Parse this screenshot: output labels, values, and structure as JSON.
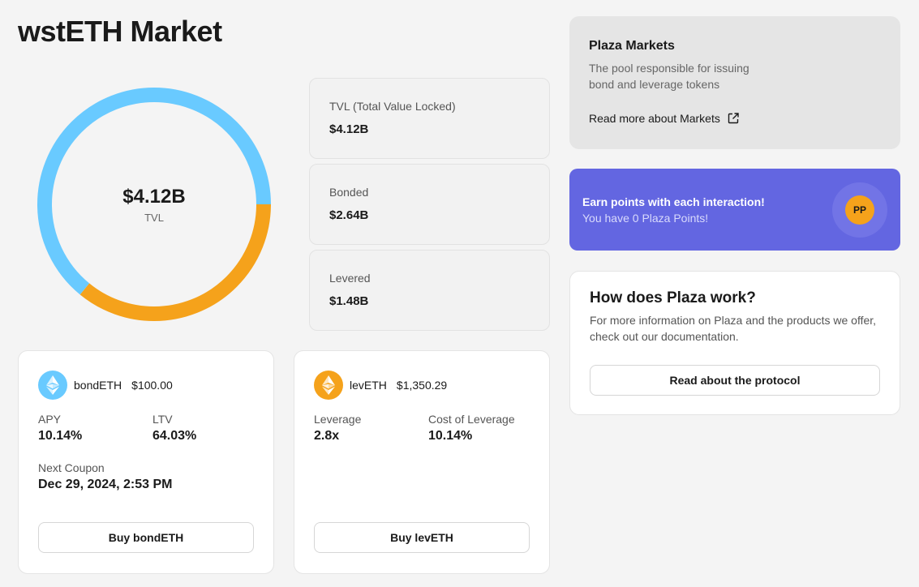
{
  "page": {
    "title": "wstETH Market"
  },
  "tvl_chart": {
    "value": "$4.12B",
    "label": "TVL",
    "segments": [
      {
        "name": "Bonded",
        "value": 2.64,
        "color": "#69caff"
      },
      {
        "name": "Levered",
        "value": 1.48,
        "color": "#f5a21b"
      }
    ]
  },
  "stats": {
    "tvl": {
      "label": "TVL (Total Value Locked)",
      "value": "$4.12B"
    },
    "bonded": {
      "label": "Bonded",
      "value": "$2.64B"
    },
    "levered": {
      "label": "Levered",
      "value": "$1.48B"
    }
  },
  "bond_card": {
    "token": "bondETH",
    "price": "$100.00",
    "icon": "ethereum-icon",
    "icon_color": "#69caff",
    "apy_label": "APY",
    "apy_value": "10.14%",
    "ltv_label": "LTV",
    "ltv_value": "64.03%",
    "coupon_label": "Next Coupon",
    "coupon_value": "Dec 29, 2024, 2:53 PM",
    "button": "Buy bondETH"
  },
  "lev_card": {
    "token": "levETH",
    "price": "$1,350.29",
    "icon": "ethereum-icon",
    "icon_color": "#f5a21b",
    "leverage_label": "Leverage",
    "leverage_value": "2.8x",
    "cost_label": "Cost of Leverage",
    "cost_value": "10.14%",
    "button": "Buy levETH"
  },
  "markets_card": {
    "title": "Plaza Markets",
    "description": "The pool responsible for issuing bond and leverage tokens",
    "link": "Read more about Markets",
    "link_icon": "external-link-icon"
  },
  "points_card": {
    "title": "Earn points with each interaction!",
    "subtitle": "You have 0 Plaza Points!",
    "badge": "PP",
    "badge_color": "#f5a21b"
  },
  "how_card": {
    "title": "How does Plaza work?",
    "description": "For more information on Plaza and the products we offer, check out our documentation.",
    "button": "Read about the protocol"
  }
}
